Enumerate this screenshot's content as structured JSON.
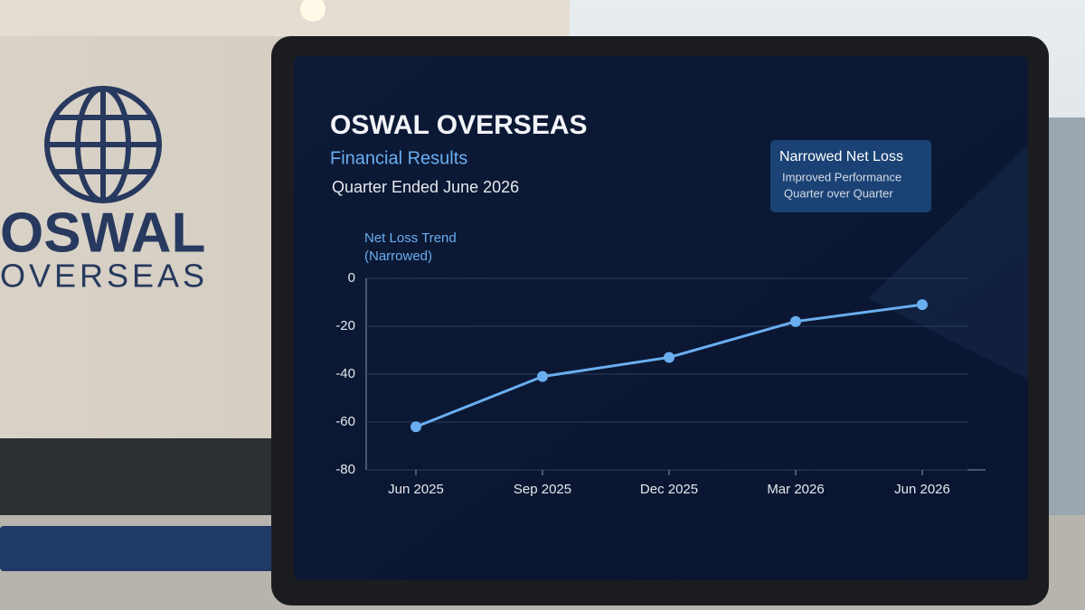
{
  "scene": {
    "wall_logo": [
      "OSWAL",
      "OVERSEAS"
    ]
  },
  "chart_data": {
    "type": "line",
    "title": "OSWAL OVERSEAS",
    "subtitle": "Financial Results",
    "period": "Quarter Ended June 2026",
    "y_label": [
      "Net Loss Trend",
      "(Narrowed)"
    ],
    "annotation": {
      "title": "Narrowed Net Loss",
      "lines": [
        "Improved Performance",
        "Quarter over Quarter"
      ]
    },
    "categories": [
      "Jun 2025",
      "Sep 2025",
      "Dec 2025",
      "Mar 2026",
      "Jun 2026"
    ],
    "values": [
      -62,
      -41,
      -33,
      -18,
      -11
    ],
    "color": "#6aaef0",
    "ylim": [
      -80,
      0
    ],
    "yticks": [
      -80,
      -60,
      -40,
      -20,
      0
    ],
    "grid": true
  }
}
